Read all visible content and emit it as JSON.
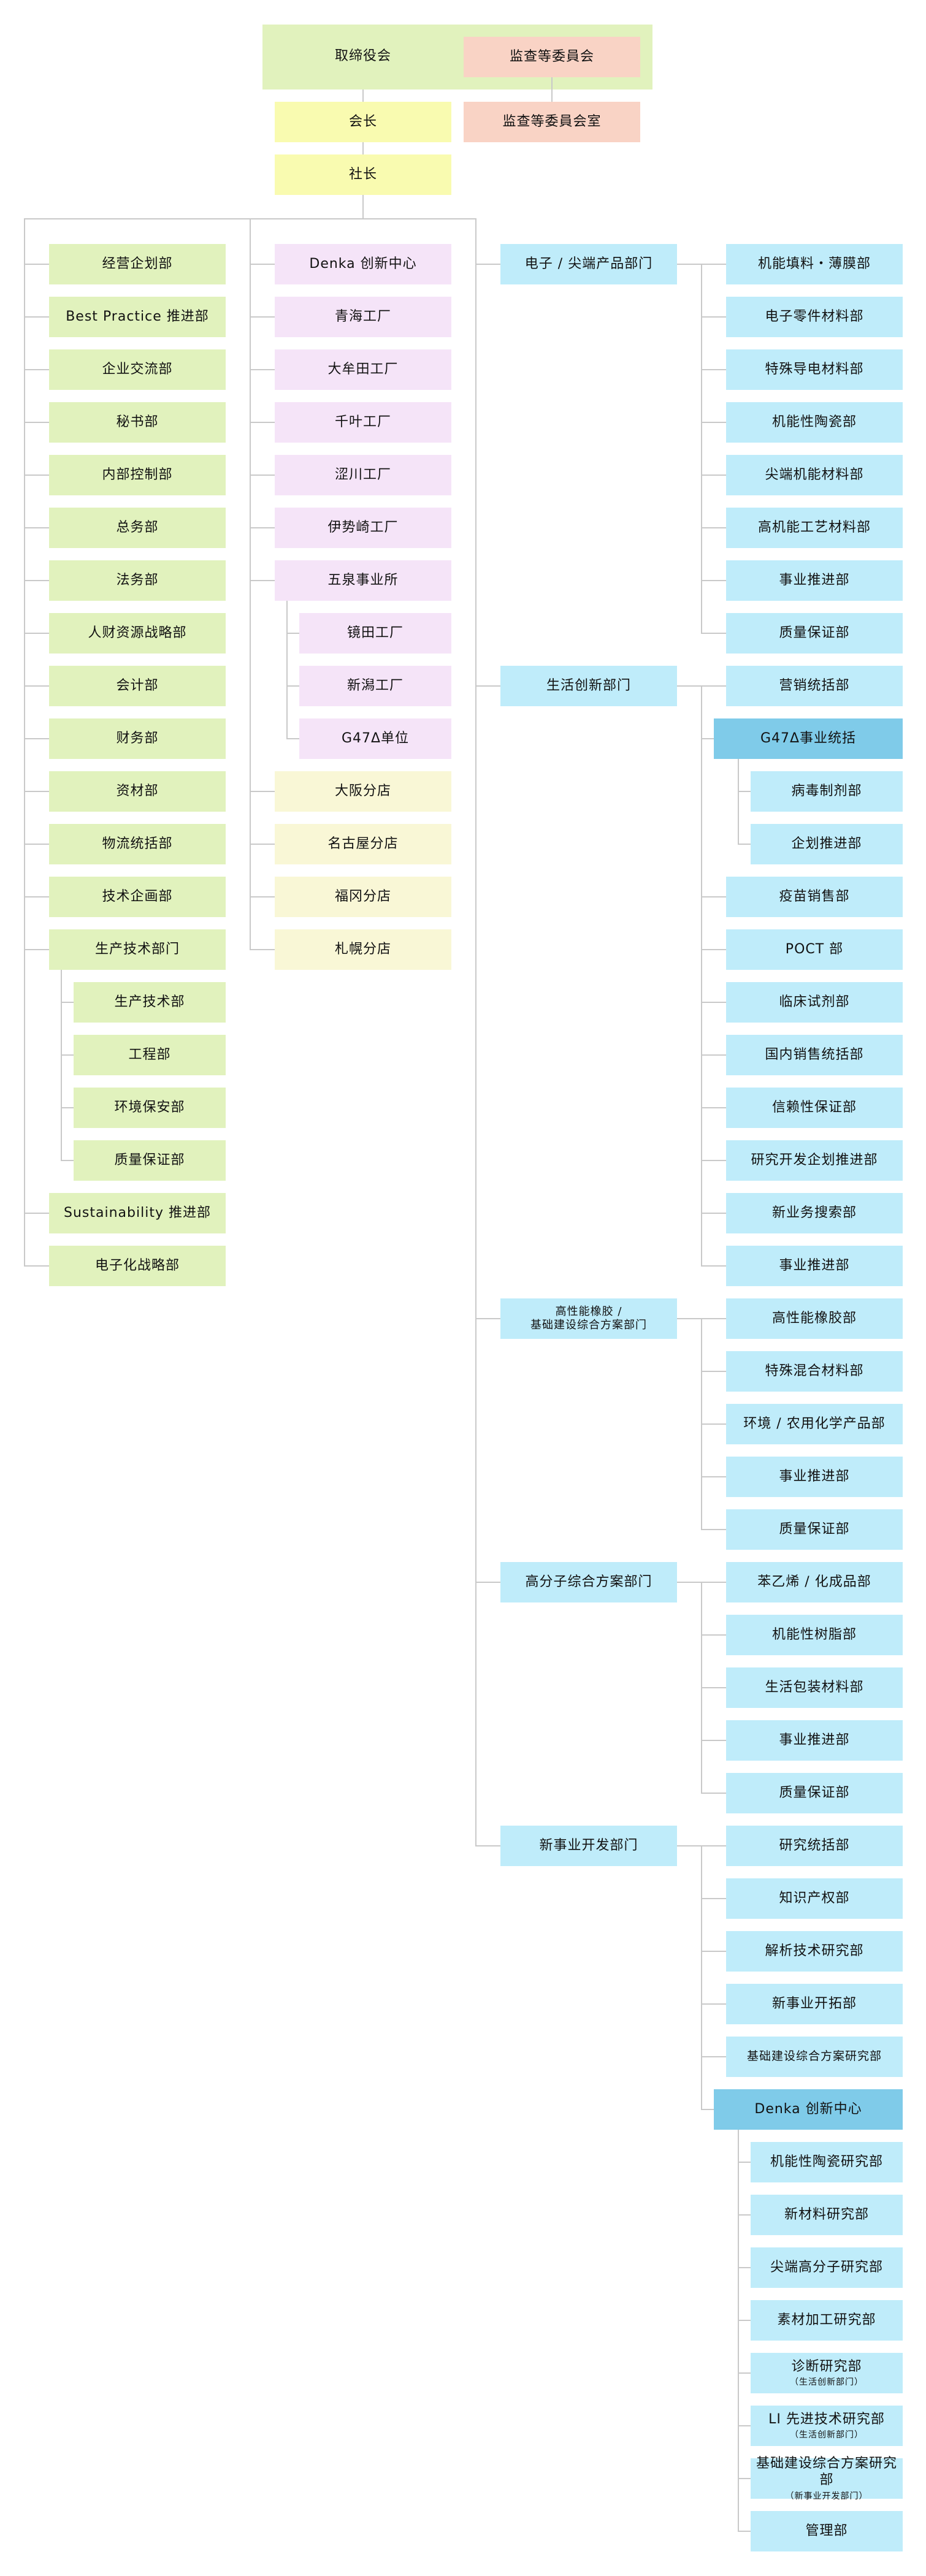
{
  "top": {
    "board": "取缔役会",
    "audit_committee": "监查等委員会",
    "chairman": "会长",
    "audit_office": "监查等委員会室",
    "president": "社长"
  },
  "corporate": [
    {
      "label": "经营企划部"
    },
    {
      "label": "Best Practice 推进部"
    },
    {
      "label": "企业交流部"
    },
    {
      "label": "秘书部"
    },
    {
      "label": "内部控制部"
    },
    {
      "label": "总务部"
    },
    {
      "label": "法务部"
    },
    {
      "label": "人财资源战略部"
    },
    {
      "label": "会计部"
    },
    {
      "label": "财务部"
    },
    {
      "label": "资材部"
    },
    {
      "label": "物流统括部"
    },
    {
      "label": "技术企画部"
    },
    {
      "label": "生产技术部门",
      "children": [
        {
          "label": "生产技术部"
        },
        {
          "label": "工程部"
        },
        {
          "label": "环境保安部"
        },
        {
          "label": "质量保证部"
        }
      ]
    },
    {
      "label": "Sustainability 推进部"
    },
    {
      "label": "电子化战略部"
    }
  ],
  "plants": [
    {
      "label": "Denka 创新中心"
    },
    {
      "label": "青海工厂"
    },
    {
      "label": "大牟田工厂"
    },
    {
      "label": "千叶工厂"
    },
    {
      "label": "涩川工厂"
    },
    {
      "label": "伊势崎工厂"
    },
    {
      "label": "五泉事业所",
      "children": [
        {
          "label": "镜田工厂"
        },
        {
          "label": "新潟工厂"
        },
        {
          "label": "G47Δ单位"
        }
      ]
    },
    {
      "label": "大阪分店",
      "kind": "branch"
    },
    {
      "label": "名古屋分店",
      "kind": "branch"
    },
    {
      "label": "福冈分店",
      "kind": "branch"
    },
    {
      "label": "札幌分店",
      "kind": "branch"
    }
  ],
  "divisions": [
    {
      "label": "电子 / 尖端产品部门",
      "departments": [
        {
          "label": "机能填料・薄膜部"
        },
        {
          "label": "电子零件材料部"
        },
        {
          "label": "特殊导电材料部"
        },
        {
          "label": "机能性陶瓷部"
        },
        {
          "label": "尖端机能材料部"
        },
        {
          "label": "高机能工艺材料部"
        },
        {
          "label": "事业推进部"
        },
        {
          "label": "质量保证部"
        }
      ]
    },
    {
      "label": "生活创新部门",
      "departments": [
        {
          "label": "营销统括部"
        },
        {
          "label": "G47Δ事业统括",
          "highlight": true,
          "children": [
            {
              "label": "病毒制剂部"
            },
            {
              "label": "企划推进部"
            }
          ]
        },
        {
          "label": "疫苗销售部"
        },
        {
          "label": "POCT 部"
        },
        {
          "label": "临床试剂部"
        },
        {
          "label": "国内销售统括部"
        },
        {
          "label": "信赖性保证部"
        },
        {
          "label": "研究开发企划推进部"
        },
        {
          "label": "新业务搜索部"
        },
        {
          "label": "事业推进部"
        }
      ]
    },
    {
      "label": "高性能橡胶 /",
      "label2": "基础建设综合方案部门",
      "departments": [
        {
          "label": "高性能橡胶部"
        },
        {
          "label": "特殊混合材料部"
        },
        {
          "label": "环境 / 农用化学产品部"
        },
        {
          "label": "事业推进部"
        },
        {
          "label": "质量保证部"
        }
      ]
    },
    {
      "label": "高分子综合方案部门",
      "departments": [
        {
          "label": "苯乙烯 / 化成品部"
        },
        {
          "label": "机能性树脂部"
        },
        {
          "label": "生活包装材料部"
        },
        {
          "label": "事业推进部"
        },
        {
          "label": "质量保证部"
        }
      ]
    },
    {
      "label": "新事业开发部门",
      "departments": [
        {
          "label": "研究统括部"
        },
        {
          "label": "知识产权部"
        },
        {
          "label": "解析技术研究部"
        },
        {
          "label": "新事业开拓部"
        },
        {
          "label": "基础建设综合方案研究部",
          "small": true
        },
        {
          "label": "Denka 创新中心",
          "highlight": true,
          "children": [
            {
              "label": "机能性陶瓷研究部"
            },
            {
              "label": "新材料研究部"
            },
            {
              "label": "尖端高分子研究部"
            },
            {
              "label": "素材加工研究部"
            },
            {
              "label": "诊断研究部",
              "note": "（生活创新部门）"
            },
            {
              "label": "LI 先进技术研究部",
              "note": "（生活创新部门）"
            },
            {
              "label": "基础建设综合方案研究部",
              "note": "（新事业开发部门）"
            },
            {
              "label": "管理部"
            }
          ]
        }
      ]
    }
  ],
  "colors": {
    "board": "#e1f2bd",
    "audit": "#f9d3c5",
    "executive": "#f9fbb0",
    "corporate": "#e1f2bd",
    "plant": "#f5e4f8",
    "branch": "#f9f7d6",
    "business": "#bfecfa",
    "business_highlight": "#7fcbe9",
    "connector": "#c9c9c9"
  }
}
